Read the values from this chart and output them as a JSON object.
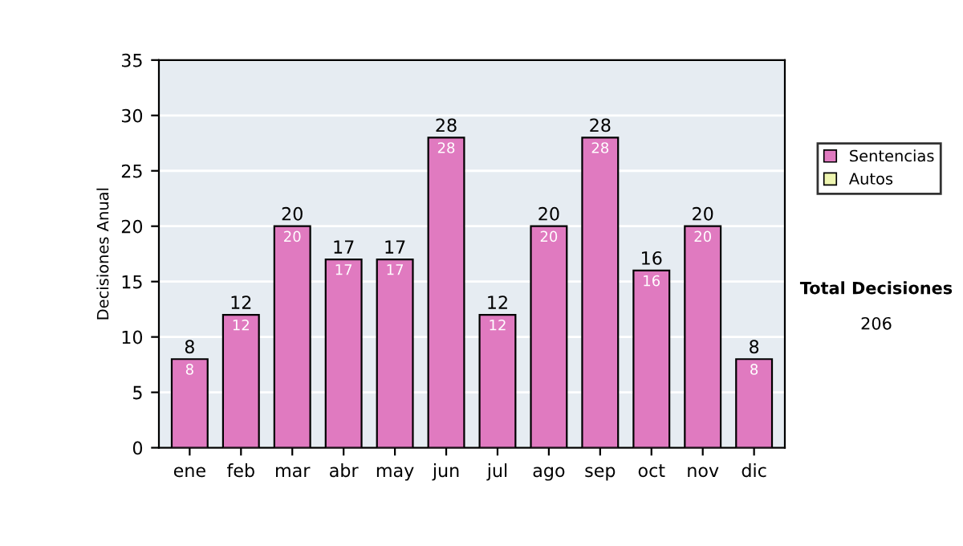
{
  "chart_data": {
    "type": "bar",
    "ylabel": "Decisiones Anual",
    "categories": [
      "ene",
      "feb",
      "mar",
      "abr",
      "may",
      "jun",
      "jul",
      "ago",
      "sep",
      "oct",
      "nov",
      "dic"
    ],
    "stacked": true,
    "series": [
      {
        "name": "Sentencias",
        "color": "#e07ac0",
        "values": [
          8,
          12,
          20,
          17,
          17,
          28,
          12,
          20,
          28,
          16,
          20,
          8
        ],
        "value_labels": [
          "8",
          "12",
          "20",
          "17",
          "17",
          "28",
          "12",
          "20",
          "28",
          "16",
          "20",
          "8"
        ]
      },
      {
        "name": "Autos",
        "color": "#eef5b0",
        "values": [
          0,
          0,
          0,
          0,
          0,
          0,
          0,
          0,
          0,
          0,
          0,
          0
        ]
      }
    ],
    "totals": [
      "8",
      "12",
      "20",
      "17",
      "17",
      "28",
      "12",
      "20",
      "28",
      "16",
      "20",
      "8"
    ],
    "ylim": [
      0,
      35
    ],
    "yticks": [
      0,
      5,
      10,
      15,
      20,
      25,
      30,
      35
    ],
    "grid": "y",
    "legend": "right",
    "annotations": [
      "Total Decisiones",
      "206"
    ]
  }
}
